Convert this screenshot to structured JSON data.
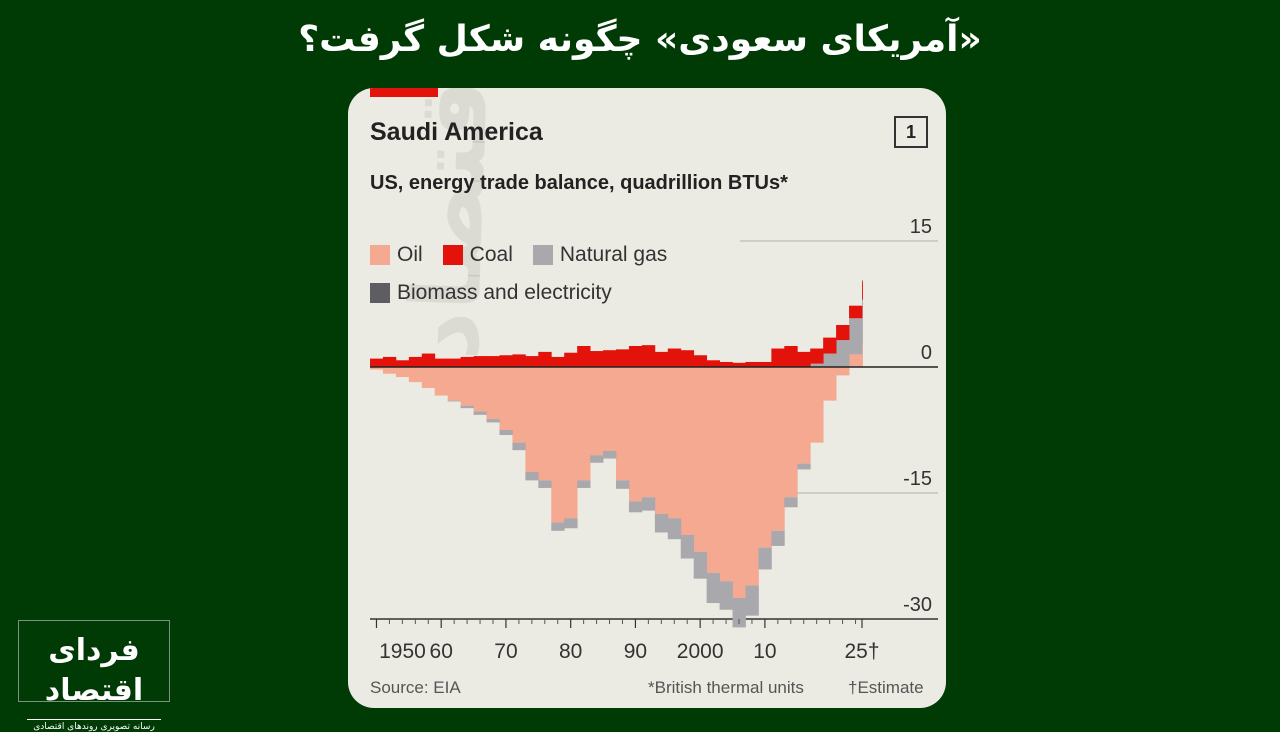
{
  "headline": "«آمریکای سعودی» چگونه شکل گرفت؟",
  "logo": {
    "name": "فردای اقتصاد",
    "tagline": "رسانه تصویری روندهای اقتصادی"
  },
  "watermark": "فردای اقتصاد",
  "card": {
    "badge": "1",
    "source": "Source: EIA",
    "footnote_btu": "*British thermal units",
    "footnote_estimate": "†Estimate"
  },
  "colors": {
    "oil": "#f5a991",
    "coal": "#e3120b",
    "natural_gas": "#a9a9ad",
    "biomass": "#5e5e62",
    "card_bg": "#ecebe3",
    "page_bg": "#003b05"
  },
  "chart_data": {
    "type": "area",
    "stacked": true,
    "title": "Saudi America",
    "subtitle": "US, energy trade balance, quadrillion BTUs*",
    "ylim": [
      -30,
      15
    ],
    "yticks": [
      15,
      0,
      -15,
      -30
    ],
    "ytick_labels": [
      "15",
      "0",
      "-15",
      "-30"
    ],
    "xlim": [
      1949,
      2025
    ],
    "xticks": [
      1950,
      1960,
      1970,
      1980,
      1990,
      2000,
      2010,
      2025
    ],
    "xtick_labels": [
      "1950",
      "60",
      "70",
      "80",
      "90",
      "2000",
      "10",
      "25†"
    ],
    "legend": [
      "Oil",
      "Coal",
      "Natural gas",
      "Biomass and electricity"
    ],
    "legend_position": "top-left",
    "x": [
      1949,
      1951,
      1953,
      1955,
      1957,
      1959,
      1961,
      1963,
      1965,
      1967,
      1969,
      1971,
      1973,
      1975,
      1977,
      1979,
      1981,
      1983,
      1985,
      1987,
      1989,
      1991,
      1993,
      1995,
      1997,
      1999,
      2001,
      2003,
      2005,
      2007,
      2009,
      2011,
      2013,
      2015,
      2017,
      2019,
      2021,
      2023,
      2025
    ],
    "series": [
      {
        "name": "Oil",
        "values": [
          -0.3,
          -0.8,
          -1.2,
          -1.8,
          -2.5,
          -3.4,
          -4.0,
          -4.6,
          -5.3,
          -6.2,
          -7.5,
          -9.0,
          -12.5,
          -13.5,
          -18.5,
          -18.0,
          -13.5,
          -10.5,
          -10.0,
          -13.5,
          -16.0,
          -15.5,
          -17.5,
          -18.0,
          -20.0,
          -22.0,
          -24.5,
          -25.5,
          -27.5,
          -26.0,
          -21.5,
          -19.5,
          -15.5,
          -11.5,
          -9.0,
          -4.0,
          -1.0,
          1.5,
          2.8
        ]
      },
      {
        "name": "Coal",
        "values": [
          1.0,
          1.2,
          0.8,
          1.2,
          1.6,
          1.0,
          1.0,
          1.2,
          1.3,
          1.3,
          1.4,
          1.5,
          1.3,
          1.8,
          1.2,
          1.7,
          2.5,
          1.9,
          2.0,
          2.1,
          2.5,
          2.6,
          1.8,
          2.2,
          2.0,
          1.4,
          0.8,
          0.6,
          0.5,
          0.6,
          0.6,
          2.2,
          2.5,
          1.8,
          1.8,
          1.9,
          1.8,
          1.5,
          2.1
        ]
      },
      {
        "name": "Natural gas",
        "values": [
          0.0,
          0.0,
          0.0,
          0.0,
          0.0,
          0.0,
          -0.1,
          -0.3,
          -0.4,
          -0.4,
          -0.6,
          -0.9,
          -1.0,
          -0.9,
          -1.0,
          -1.2,
          -0.9,
          -0.9,
          -0.9,
          -1.0,
          -1.3,
          -1.6,
          -2.2,
          -2.5,
          -2.8,
          -3.2,
          -3.6,
          -3.4,
          -3.5,
          -3.6,
          -2.6,
          -1.8,
          -1.2,
          -0.7,
          0.4,
          1.6,
          3.2,
          4.3,
          5.2
        ]
      },
      {
        "name": "Biomass and electricity",
        "values": [
          0.0,
          0.0,
          0.0,
          0.0,
          0.0,
          0.0,
          0.0,
          0.0,
          0.0,
          0.0,
          0.0,
          0.0,
          0.0,
          0.0,
          0.0,
          0.0,
          0.0,
          0.0,
          0.0,
          0.0,
          0.0,
          0.0,
          0.0,
          0.0,
          0.0,
          0.0,
          0.0,
          0.0,
          0.0,
          0.0,
          0.0,
          0.0,
          0.0,
          0.0,
          0.0,
          0.0,
          0.0,
          0.0,
          0.2
        ]
      }
    ]
  }
}
